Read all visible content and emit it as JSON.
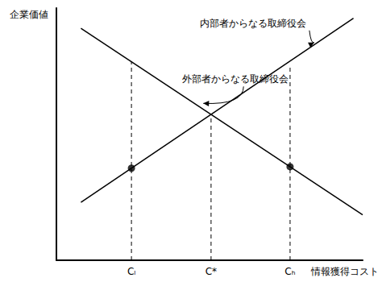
{
  "chart_data": {
    "type": "line",
    "x_label": "情報獲得コスト",
    "y_label": "企業価値",
    "xlim": [
      0,
      10
    ],
    "ylim": [
      0,
      10
    ],
    "xticks": [
      {
        "value": 2.45,
        "label": "Cₗ"
      },
      {
        "value": 5.05,
        "label": "C*"
      },
      {
        "value": 7.63,
        "label": "Cₕ"
      }
    ],
    "yticks": [],
    "tick_labels": "x",
    "grid": false,
    "series": [
      {
        "name": "外部者からなる取締役会",
        "color": "#000000",
        "line_style": "solid",
        "x": [
          0.8,
          10
        ],
        "values": [
          9.2,
          1.8
        ]
      },
      {
        "name": "内部者からなる取締役会",
        "color": "#000000",
        "line_style": "solid",
        "x": [
          0.8,
          9.7
        ],
        "values": [
          2.3,
          9.6
        ]
      }
    ],
    "guides": [
      {
        "x": 2.45,
        "y": 7.87
      },
      {
        "x": 5.05,
        "y": 5.79
      },
      {
        "x": 7.63,
        "y": 7.67
      }
    ],
    "points": {
      "marker": "circle",
      "color": "#000000",
      "x": [
        2.45,
        7.63
      ],
      "values": [
        3.65,
        3.71
      ]
    }
  }
}
